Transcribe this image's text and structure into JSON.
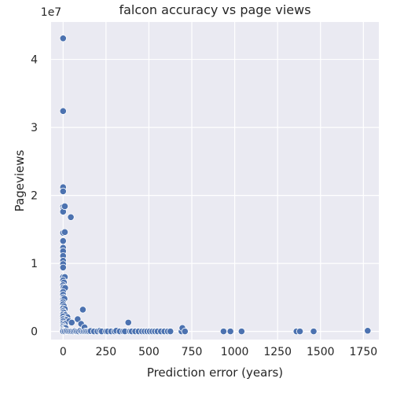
{
  "chart_data": {
    "type": "scatter",
    "title": "falcon accuracy vs page views",
    "xlabel": "Prediction error (years)",
    "ylabel": "Pageviews",
    "y_offset_text": "1e7",
    "xlim": [
      -70,
      1840
    ],
    "ylim": [
      -1200000,
      45500000
    ],
    "x_ticks": [
      0,
      250,
      500,
      750,
      1000,
      1250,
      1500,
      1750
    ],
    "y_ticks": [
      0,
      10000000,
      20000000,
      30000000,
      40000000
    ],
    "x_tick_labels": [
      "0",
      "250",
      "500",
      "750",
      "1000",
      "1250",
      "1500",
      "1750"
    ],
    "y_tick_labels": [
      "0",
      "1",
      "2",
      "3",
      "4"
    ],
    "grid": true,
    "background": "#eaeaf2",
    "point_color": "#4c72b0",
    "points": [
      [
        0,
        43100000
      ],
      [
        0,
        32400000
      ],
      [
        0,
        21200000
      ],
      [
        0,
        20600000
      ],
      [
        0,
        18300000
      ],
      [
        2,
        18000000
      ],
      [
        0,
        17600000
      ],
      [
        10,
        18400000
      ],
      [
        45,
        16800000
      ],
      [
        0,
        14500000
      ],
      [
        10,
        14600000
      ],
      [
        0,
        13300000
      ],
      [
        0,
        12300000
      ],
      [
        0,
        11800000
      ],
      [
        0,
        11100000
      ],
      [
        0,
        10400000
      ],
      [
        0,
        9900000
      ],
      [
        0,
        9400000
      ],
      [
        0,
        8000000
      ],
      [
        10,
        8000000
      ],
      [
        0,
        7500000
      ],
      [
        5,
        7200000
      ],
      [
        0,
        6800000
      ],
      [
        3,
        6500000
      ],
      [
        12,
        6400000
      ],
      [
        0,
        5800000
      ],
      [
        0,
        5400000
      ],
      [
        2,
        5000000
      ],
      [
        0,
        4700000
      ],
      [
        8,
        4800000
      ],
      [
        0,
        4300000
      ],
      [
        0,
        4000000
      ],
      [
        5,
        3700000
      ],
      [
        0,
        3400000
      ],
      [
        10,
        3300000
      ],
      [
        0,
        3000000
      ],
      [
        3,
        2800000
      ],
      [
        0,
        2500000
      ],
      [
        12,
        2400000
      ],
      [
        0,
        2200000
      ],
      [
        25,
        2100000
      ],
      [
        5,
        1900000
      ],
      [
        0,
        1800000
      ],
      [
        20,
        1700000
      ],
      [
        0,
        1500000
      ],
      [
        35,
        1500000
      ],
      [
        0,
        1200000
      ],
      [
        10,
        1100000
      ],
      [
        0,
        900000
      ],
      [
        50,
        1300000
      ],
      [
        0,
        700000
      ],
      [
        8,
        600000
      ],
      [
        0,
        400000
      ],
      [
        15,
        500000
      ],
      [
        0,
        200000
      ],
      [
        5,
        100000
      ],
      [
        0,
        0
      ],
      [
        10,
        0
      ],
      [
        20,
        50000
      ],
      [
        30,
        20000
      ],
      [
        40,
        0
      ],
      [
        50,
        0
      ],
      [
        60,
        0
      ],
      [
        70,
        50000
      ],
      [
        80,
        0
      ],
      [
        85,
        1800000
      ],
      [
        90,
        0
      ],
      [
        100,
        100000
      ],
      [
        105,
        1100000
      ],
      [
        110,
        0
      ],
      [
        115,
        3200000
      ],
      [
        120,
        0
      ],
      [
        125,
        600000
      ],
      [
        130,
        0
      ],
      [
        140,
        0
      ],
      [
        150,
        0
      ],
      [
        160,
        50000
      ],
      [
        180,
        0
      ],
      [
        200,
        0
      ],
      [
        215,
        100000
      ],
      [
        225,
        0
      ],
      [
        250,
        0
      ],
      [
        260,
        0
      ],
      [
        280,
        0
      ],
      [
        300,
        0
      ],
      [
        310,
        100000
      ],
      [
        330,
        0
      ],
      [
        350,
        0
      ],
      [
        360,
        0
      ],
      [
        380,
        1300000
      ],
      [
        390,
        0
      ],
      [
        400,
        0
      ],
      [
        420,
        0
      ],
      [
        440,
        0
      ],
      [
        460,
        0
      ],
      [
        475,
        0
      ],
      [
        490,
        0
      ],
      [
        505,
        0
      ],
      [
        520,
        0
      ],
      [
        535,
        0
      ],
      [
        550,
        0
      ],
      [
        570,
        0
      ],
      [
        590,
        0
      ],
      [
        610,
        0
      ],
      [
        625,
        0
      ],
      [
        690,
        0
      ],
      [
        695,
        500000
      ],
      [
        710,
        0
      ],
      [
        935,
        0
      ],
      [
        975,
        0
      ],
      [
        1040,
        0
      ],
      [
        1360,
        0
      ],
      [
        1380,
        0
      ],
      [
        1460,
        0
      ],
      [
        1775,
        100000
      ]
    ]
  }
}
